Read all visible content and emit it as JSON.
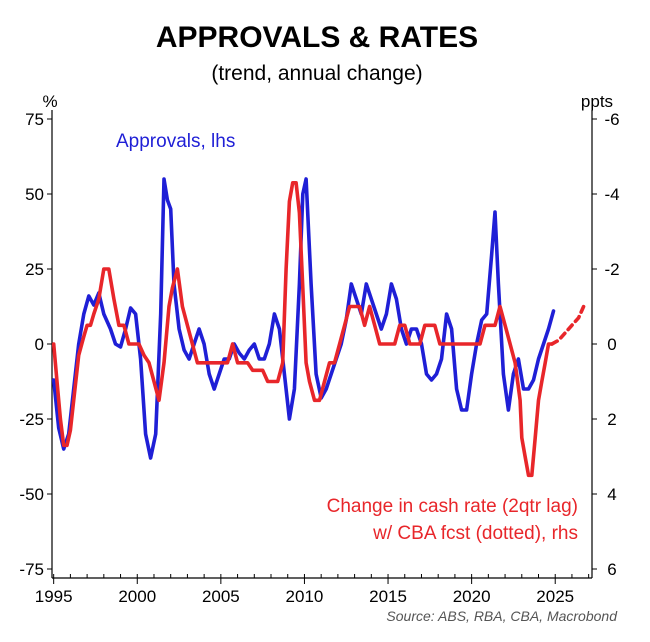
{
  "chart_data": {
    "type": "line",
    "title": "APPROVALS & RATES",
    "subtitle": "(trend, annual change)",
    "y_left_unit": "%",
    "y_right_unit": "ppts",
    "x_ticks": [
      "1995",
      "2000",
      "2005",
      "2010",
      "2015",
      "2020",
      "2025"
    ],
    "y_left_ticks": [
      "75",
      "50",
      "25",
      "0",
      "-25",
      "-50",
      "-75"
    ],
    "y_right_ticks": [
      "-6",
      "-4",
      "-2",
      "0",
      "2",
      "4",
      "6"
    ],
    "xlim": [
      1994.9,
      2027.2
    ],
    "y_left_lim": [
      -78,
      78
    ],
    "y_right_lim": [
      6.24,
      -6.24
    ],
    "right_axis_inverted": true,
    "grid": false,
    "annotations": {
      "approvals_label": "Approvals, lhs",
      "cash_rate_label_line1": "Change in cash rate (2qtr lag)",
      "cash_rate_label_line2": "w/ CBA fcst (dotted), rhs"
    },
    "source": "Source: ABS, RBA, CBA, Macrobond",
    "colors": {
      "approvals": "#1f1fd6",
      "cash_rate": "#e8262a",
      "axis": "#000000"
    },
    "series": [
      {
        "axis": "left",
        "x": [
          1995.0,
          1995.3,
          1995.6,
          1995.9,
          1996.2,
          1996.5,
          1996.8,
          1997.1,
          1997.4,
          1997.7,
          1998.0,
          1998.4,
          1998.7,
          1999.0,
          1999.3,
          1999.6,
          1999.9,
          2000.2,
          2000.5,
          2000.8,
          2001.1,
          2001.4,
          2001.6,
          2001.8,
          2002.0,
          2002.2,
          2002.5,
          2002.8,
          2003.1,
          2003.4,
          2003.7,
          2004.0,
          2004.3,
          2004.6,
          2004.9,
          2005.2,
          2005.5,
          2005.8,
          2006.1,
          2006.4,
          2006.7,
          2007.0,
          2007.3,
          2007.6,
          2007.9,
          2008.2,
          2008.5,
          2008.8,
          2009.1,
          2009.4,
          2009.7,
          2009.9,
          2010.1,
          2010.4,
          2010.7,
          2011.0,
          2011.3,
          2011.6,
          2011.9,
          2012.2,
          2012.5,
          2012.8,
          2013.1,
          2013.4,
          2013.7,
          2014.0,
          2014.3,
          2014.6,
          2014.9,
          2015.2,
          2015.5,
          2015.8,
          2016.1,
          2016.4,
          2016.7,
          2017.0,
          2017.3,
          2017.6,
          2017.9,
          2018.2,
          2018.5,
          2018.8,
          2019.1,
          2019.4,
          2019.7,
          2020.0,
          2020.3,
          2020.6,
          2020.9,
          2021.2,
          2021.4,
          2021.6,
          2021.9,
          2022.2,
          2022.5,
          2022.8,
          2023.1,
          2023.4,
          2023.7,
          2024.0,
          2024.3,
          2024.6,
          2024.9
        ],
        "values": [
          -12,
          -28,
          -35,
          -30,
          -15,
          0,
          10,
          16,
          13,
          17,
          10,
          5,
          0,
          -1,
          5,
          12,
          10,
          -5,
          -30,
          -38,
          -30,
          10,
          55,
          48,
          45,
          20,
          5,
          -2,
          -5,
          0,
          5,
          0,
          -10,
          -15,
          -10,
          -5,
          -5,
          0,
          -3,
          -5,
          -2,
          0,
          -5,
          -5,
          0,
          10,
          5,
          -10,
          -25,
          -15,
          20,
          50,
          55,
          20,
          -10,
          -18,
          -15,
          -10,
          -5,
          0,
          8,
          20,
          15,
          10,
          20,
          15,
          10,
          5,
          10,
          20,
          15,
          5,
          0,
          5,
          5,
          0,
          -10,
          -12,
          -10,
          -5,
          10,
          5,
          -15,
          -22,
          -22,
          -10,
          0,
          8,
          10,
          30,
          44,
          20,
          -10,
          -22,
          -10,
          -5,
          -15,
          -15,
          -12,
          -5,
          0,
          5,
          11
        ]
      },
      {
        "axis": "right",
        "x": [
          1995.0,
          1995.2,
          1995.4,
          1995.6,
          1995.8,
          1996.0,
          1996.2,
          1996.5,
          1996.8,
          1997.0,
          1997.2,
          1997.4,
          1997.7,
          1998.0,
          1998.3,
          1998.6,
          1998.9,
          1999.2,
          1999.5,
          1999.8,
          2000.1,
          2000.4,
          2000.7,
          2001.0,
          2001.3,
          2001.6,
          2001.9,
          2002.1,
          2002.4,
          2002.7,
          2003.0,
          2003.3,
          2003.6,
          2003.9,
          2004.2,
          2004.5,
          2004.8,
          2005.1,
          2005.4,
          2005.7,
          2006.0,
          2006.3,
          2006.6,
          2006.9,
          2007.2,
          2007.5,
          2007.8,
          2008.1,
          2008.4,
          2008.7,
          2008.9,
          2009.1,
          2009.3,
          2009.5,
          2009.7,
          2009.9,
          2010.1,
          2010.3,
          2010.6,
          2010.9,
          2011.2,
          2011.5,
          2011.8,
          2012.1,
          2012.4,
          2012.7,
          2013.0,
          2013.3,
          2013.6,
          2013.9,
          2014.2,
          2014.5,
          2014.8,
          2015.1,
          2015.4,
          2015.7,
          2016.0,
          2016.3,
          2016.6,
          2016.9,
          2017.2,
          2017.5,
          2017.8,
          2018.1,
          2018.4,
          2018.7,
          2019.0,
          2019.3,
          2019.6,
          2019.9,
          2020.2,
          2020.5,
          2020.8,
          2021.1,
          2021.4,
          2021.7,
          2022.0,
          2022.3,
          2022.6,
          2022.9,
          2023.0,
          2023.2,
          2023.4,
          2023.6,
          2023.8,
          2024.0,
          2024.2,
          2024.4,
          2024.6,
          2024.8
        ],
        "values": [
          0,
          1,
          2,
          2.7,
          2.7,
          2.3,
          1.5,
          0.3,
          -0.2,
          -0.5,
          -0.5,
          -0.8,
          -1.2,
          -2,
          -2,
          -1.2,
          -0.5,
          -0.5,
          0,
          0,
          0,
          0.3,
          0.5,
          1,
          1.5,
          0.5,
          -1,
          -1.5,
          -2,
          -1,
          -0.5,
          0,
          0.5,
          0.5,
          0.5,
          0.5,
          0.5,
          0.5,
          0.5,
          0,
          0.5,
          0.5,
          0.5,
          0.7,
          0.7,
          0.7,
          1,
          1,
          1,
          0.5,
          -2,
          -3.8,
          -4.3,
          -4.3,
          -3.5,
          -1.5,
          0.5,
          1,
          1.5,
          1.5,
          1,
          0.5,
          0.5,
          0,
          -0.5,
          -1,
          -1,
          -1,
          -0.5,
          -1,
          -0.5,
          0,
          0,
          0,
          0,
          -0.5,
          -0.5,
          0,
          0,
          0,
          -0.5,
          -0.5,
          -0.5,
          0,
          0,
          0,
          0,
          0,
          0,
          0,
          0,
          0,
          -0.5,
          -0.5,
          -0.5,
          -1,
          -0.5,
          0,
          0.5,
          1.5,
          2.5,
          3,
          3.5,
          3.5,
          2.5,
          1.5,
          1,
          0.5,
          0,
          0
        ]
      },
      {
        "axis": "right",
        "x": [
          2024.8,
          2025.2,
          2025.6,
          2026.0,
          2026.4,
          2026.7
        ],
        "values": [
          0,
          -0.1,
          -0.3,
          -0.5,
          -0.7,
          -1.0
        ]
      }
    ]
  }
}
